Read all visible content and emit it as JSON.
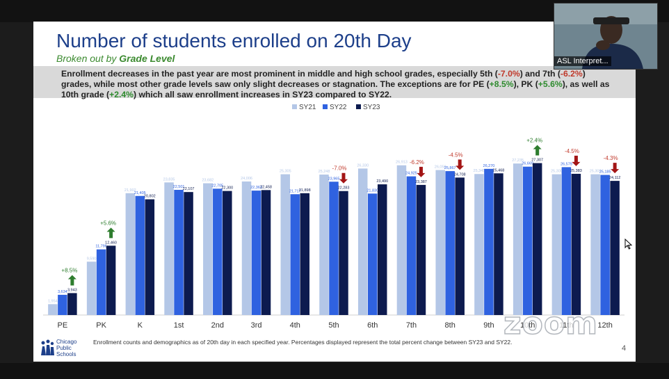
{
  "slide": {
    "title": "Number of students enrolled on 20th Day",
    "subtitle_lead": "Broken out by ",
    "subtitle_bold": "Grade Level",
    "summary": {
      "t1": "Enrollment decreases in the past year are most prominent in middle and high school grades, especially 5th (",
      "v1": "-7.0%",
      "t2": ") and 7th (",
      "v2": "-6.2%",
      "t3": ") grades, while most other grade levels saw only slight decreases or stagnation. The exceptions are for PE (",
      "v3": "+8.5%",
      "t4": "), PK (",
      "v4": "+5.6%",
      "t5": "), as well as 10th grade (",
      "v5": "+2.4%",
      "t6": ") which all saw enrollment increases in SY23 compared to SY22."
    },
    "footer_note": "Enrollment counts and demographics as of 20th day in each specified year. Percentages displayed represent the total percent change between SY23 and SY22.",
    "logo_lines": [
      "Chicago",
      "Public",
      "Schools"
    ],
    "page_number": "4"
  },
  "overlay": {
    "video_label": "ASL Interpret...",
    "watermark": "zoom"
  },
  "colors": {
    "sy21": "#b4c7e7",
    "sy22": "#2f62e0",
    "sy23": "#0d1b4f",
    "neg_arrow": "#a31515",
    "pos_arrow": "#2e7d2e",
    "title": "#1d3f8a"
  },
  "chart_data": {
    "type": "bar",
    "categories": [
      "PE",
      "PK",
      "K",
      "1st",
      "2nd",
      "3rd",
      "4th",
      "5th",
      "6th",
      "7th",
      "8th",
      "9th",
      "10th",
      "11th",
      "12th"
    ],
    "series": [
      {
        "name": "SY21",
        "values": [
          1954,
          9590,
          21902,
          23835,
          23682,
          24006,
          25305,
          25248,
          26330,
          26913,
          26058,
          25345,
          27235,
          25300,
          25301
        ],
        "labels": [
          "1,954",
          "9,590",
          "21,902",
          "23,835",
          "23,682",
          "24,006",
          "25,305",
          "25,248",
          "26,330",
          "26,913",
          "26,058",
          "25,345",
          "27,235",
          "25,300",
          "25,301"
        ]
      },
      {
        "name": "SY22",
        "values": [
          3634,
          11796,
          21405,
          22501,
          22705,
          22363,
          21717,
          23965,
          21830,
          24925,
          25867,
          26270,
          26669,
          26579,
          25185
        ],
        "labels": [
          "3,634",
          "11,796",
          "21,405",
          "22,501",
          "22,705",
          "22,363",
          "21,717",
          "23,965",
          "21,830",
          "24,925",
          "25,867",
          "26,270",
          "26,669",
          "26,579",
          "25,185"
        ]
      },
      {
        "name": "SY23",
        "values": [
          3943,
          12460,
          20802,
          22107,
          22300,
          22458,
          21898,
          22283,
          23490,
          23387,
          24708,
          25468,
          27307,
          25383,
          24112
        ],
        "labels": [
          "3,943",
          "12,460",
          "20,802",
          "22,107",
          "22,300",
          "22,458",
          "21,898",
          "22,283",
          "23,490",
          "23,387",
          "24,708",
          "25,468",
          "27,307",
          "25,383",
          "24,112"
        ]
      }
    ],
    "changes": [
      {
        "category": "PE",
        "label": "+8.5%",
        "direction": "up"
      },
      {
        "category": "PK",
        "label": "+5.6%",
        "direction": "up"
      },
      {
        "category": "5th",
        "label": "-7.0%",
        "direction": "down"
      },
      {
        "category": "7th",
        "label": "-6.2%",
        "direction": "down"
      },
      {
        "category": "8th",
        "label": "-4.5%",
        "direction": "down"
      },
      {
        "category": "10th",
        "label": "+2.4%",
        "direction": "up"
      },
      {
        "category": "11th",
        "label": "-4.5%",
        "direction": "down"
      },
      {
        "category": "12th",
        "label": "-4.3%",
        "direction": "down"
      }
    ],
    "ylim": [
      0,
      30000
    ],
    "legend_position": "top-center",
    "grid": false
  }
}
